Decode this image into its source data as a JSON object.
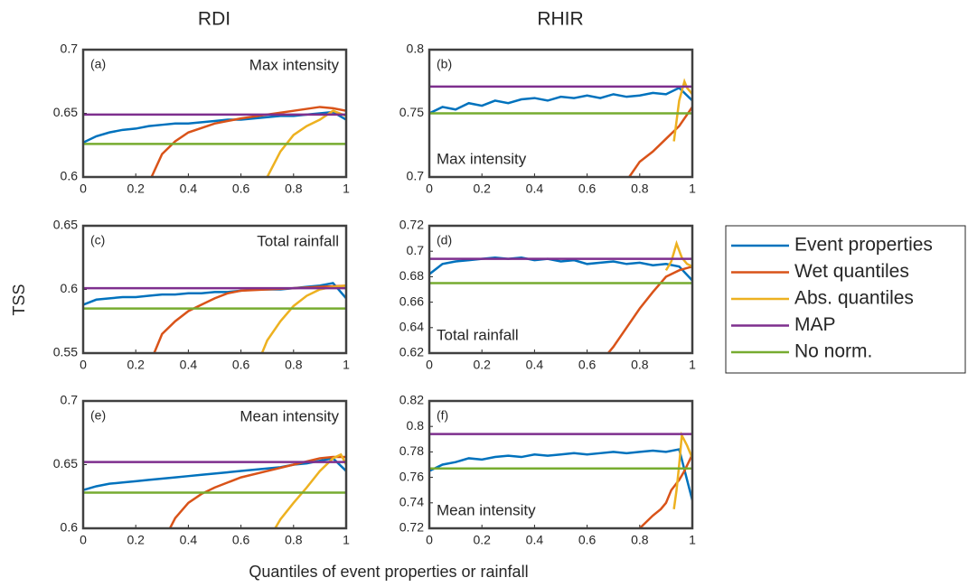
{
  "figure": {
    "column_titles": [
      "RDI",
      "RHIR"
    ],
    "ylabel": "TSS",
    "xlabel": "Quantiles of event properties or rainfall",
    "legend_position": "right",
    "series": [
      {
        "name": "Event properties",
        "color": "#0072bd"
      },
      {
        "name": "Wet quantiles",
        "color": "#d95319"
      },
      {
        "name": "Abs. quantiles",
        "color": "#edb120"
      },
      {
        "name": "MAP",
        "color": "#7e2f8e"
      },
      {
        "name": "No norm.",
        "color": "#77ac30"
      }
    ]
  },
  "chart_data": [
    {
      "type": "line",
      "label": "(a)",
      "annotation": "Max intensity",
      "annotation_corner": "upper right",
      "xlim": [
        0,
        1
      ],
      "xticks": [
        0,
        0.2,
        0.4,
        0.6,
        0.8,
        1
      ],
      "ylim": [
        0.6,
        0.7
      ],
      "yticks": [
        0.6,
        0.65,
        0.7
      ],
      "series": [
        {
          "x": [
            0,
            0.05,
            0.1,
            0.15,
            0.2,
            0.25,
            0.3,
            0.35,
            0.4,
            0.45,
            0.5,
            0.55,
            0.6,
            0.65,
            0.7,
            0.75,
            0.8,
            0.85,
            0.9,
            0.95,
            1
          ],
          "values": [
            0.627,
            0.632,
            0.635,
            0.637,
            0.638,
            0.64,
            0.641,
            0.642,
            0.642,
            0.643,
            0.644,
            0.645,
            0.645,
            0.646,
            0.647,
            0.648,
            0.648,
            0.649,
            0.65,
            0.651,
            0.645
          ]
        },
        {
          "x": [
            0.26,
            0.3,
            0.35,
            0.4,
            0.5,
            0.6,
            0.7,
            0.8,
            0.9,
            0.95,
            1
          ],
          "values": [
            0.6,
            0.618,
            0.628,
            0.635,
            0.642,
            0.646,
            0.649,
            0.652,
            0.655,
            0.654,
            0.652
          ]
        },
        {
          "x": [
            0.7,
            0.75,
            0.8,
            0.85,
            0.9,
            0.95,
            1
          ],
          "values": [
            0.6,
            0.62,
            0.633,
            0.64,
            0.645,
            0.652,
            0.648
          ]
        },
        {
          "x": [
            0,
            1
          ],
          "values": [
            0.649,
            0.649
          ]
        },
        {
          "x": [
            0,
            1
          ],
          "values": [
            0.626,
            0.626
          ]
        }
      ]
    },
    {
      "type": "line",
      "label": "(b)",
      "annotation": "Max intensity",
      "annotation_corner": "lower left",
      "xlim": [
        0,
        1
      ],
      "xticks": [
        0,
        0.2,
        0.4,
        0.6,
        0.8,
        1
      ],
      "ylim": [
        0.7,
        0.8
      ],
      "yticks": [
        0.7,
        0.75,
        0.8
      ],
      "series": [
        {
          "x": [
            0,
            0.05,
            0.1,
            0.15,
            0.2,
            0.25,
            0.3,
            0.35,
            0.4,
            0.45,
            0.5,
            0.55,
            0.6,
            0.65,
            0.7,
            0.75,
            0.8,
            0.85,
            0.9,
            0.95,
            1
          ],
          "values": [
            0.75,
            0.755,
            0.753,
            0.758,
            0.756,
            0.76,
            0.758,
            0.761,
            0.762,
            0.76,
            0.763,
            0.762,
            0.764,
            0.762,
            0.765,
            0.763,
            0.764,
            0.766,
            0.765,
            0.77,
            0.76
          ]
        },
        {
          "x": [
            0.76,
            0.8,
            0.85,
            0.9,
            0.95,
            1
          ],
          "values": [
            0.7,
            0.712,
            0.72,
            0.73,
            0.74,
            0.755
          ]
        },
        {
          "x": [
            0.93,
            0.95,
            0.97,
            0.98,
            1
          ],
          "values": [
            0.728,
            0.76,
            0.775,
            0.77,
            0.765
          ]
        },
        {
          "x": [
            0,
            1
          ],
          "values": [
            0.771,
            0.771
          ]
        },
        {
          "x": [
            0,
            1
          ],
          "values": [
            0.75,
            0.75
          ]
        }
      ]
    },
    {
      "type": "line",
      "label": "(c)",
      "annotation": "Total rainfall",
      "annotation_corner": "upper right",
      "xlim": [
        0,
        1
      ],
      "xticks": [
        0,
        0.2,
        0.4,
        0.6,
        0.8,
        1
      ],
      "ylim": [
        0.55,
        0.65
      ],
      "yticks": [
        0.55,
        0.6,
        0.65
      ],
      "series": [
        {
          "x": [
            0,
            0.05,
            0.1,
            0.15,
            0.2,
            0.25,
            0.3,
            0.35,
            0.4,
            0.45,
            0.5,
            0.55,
            0.6,
            0.65,
            0.7,
            0.75,
            0.8,
            0.85,
            0.9,
            0.95,
            1
          ],
          "values": [
            0.588,
            0.592,
            0.593,
            0.594,
            0.594,
            0.595,
            0.596,
            0.596,
            0.597,
            0.597,
            0.598,
            0.598,
            0.599,
            0.6,
            0.6,
            0.6,
            0.601,
            0.602,
            0.603,
            0.605,
            0.593
          ]
        },
        {
          "x": [
            0.27,
            0.3,
            0.35,
            0.4,
            0.45,
            0.5,
            0.55,
            0.6,
            0.7,
            0.8,
            0.9,
            1
          ],
          "values": [
            0.55,
            0.565,
            0.575,
            0.583,
            0.588,
            0.593,
            0.597,
            0.599,
            0.6,
            0.601,
            0.602,
            0.603
          ]
        },
        {
          "x": [
            0.68,
            0.7,
            0.75,
            0.8,
            0.85,
            0.9,
            0.95,
            1
          ],
          "values": [
            0.55,
            0.56,
            0.575,
            0.587,
            0.595,
            0.6,
            0.602,
            0.603
          ]
        },
        {
          "x": [
            0,
            1
          ],
          "values": [
            0.601,
            0.601
          ]
        },
        {
          "x": [
            0,
            1
          ],
          "values": [
            0.585,
            0.585
          ]
        }
      ]
    },
    {
      "type": "line",
      "label": "(d)",
      "annotation": "Total rainfall",
      "annotation_corner": "lower left",
      "xlim": [
        0,
        1
      ],
      "xticks": [
        0,
        0.2,
        0.4,
        0.6,
        0.8,
        1
      ],
      "ylim": [
        0.62,
        0.72
      ],
      "yticks": [
        0.62,
        0.64,
        0.66,
        0.68,
        0.7,
        0.72
      ],
      "series": [
        {
          "x": [
            0,
            0.05,
            0.1,
            0.15,
            0.2,
            0.25,
            0.3,
            0.35,
            0.4,
            0.45,
            0.5,
            0.55,
            0.6,
            0.65,
            0.7,
            0.75,
            0.8,
            0.85,
            0.9,
            0.95,
            1
          ],
          "values": [
            0.682,
            0.69,
            0.692,
            0.693,
            0.694,
            0.695,
            0.694,
            0.695,
            0.693,
            0.694,
            0.692,
            0.693,
            0.69,
            0.691,
            0.692,
            0.69,
            0.691,
            0.689,
            0.69,
            0.688,
            0.677
          ]
        },
        {
          "x": [
            0.68,
            0.7,
            0.75,
            0.8,
            0.85,
            0.9,
            0.95,
            1
          ],
          "values": [
            0.62,
            0.625,
            0.64,
            0.655,
            0.668,
            0.68,
            0.685,
            0.688
          ]
        },
        {
          "x": [
            0.9,
            0.92,
            0.94,
            0.96,
            0.98,
            1
          ],
          "values": [
            0.685,
            0.692,
            0.706,
            0.695,
            0.69,
            0.688
          ]
        },
        {
          "x": [
            0,
            1
          ],
          "values": [
            0.694,
            0.694
          ]
        },
        {
          "x": [
            0,
            1
          ],
          "values": [
            0.675,
            0.675
          ]
        }
      ]
    },
    {
      "type": "line",
      "label": "(e)",
      "annotation": "Mean intensity",
      "annotation_corner": "upper right",
      "xlim": [
        0,
        1
      ],
      "xticks": [
        0,
        0.2,
        0.4,
        0.6,
        0.8,
        1
      ],
      "ylim": [
        0.6,
        0.7
      ],
      "yticks": [
        0.6,
        0.65,
        0.7
      ],
      "series": [
        {
          "x": [
            0,
            0.05,
            0.1,
            0.15,
            0.2,
            0.25,
            0.3,
            0.35,
            0.4,
            0.45,
            0.5,
            0.55,
            0.6,
            0.65,
            0.7,
            0.75,
            0.8,
            0.85,
            0.9,
            0.95,
            1
          ],
          "values": [
            0.63,
            0.633,
            0.635,
            0.636,
            0.637,
            0.638,
            0.639,
            0.64,
            0.641,
            0.642,
            0.643,
            0.644,
            0.645,
            0.646,
            0.647,
            0.648,
            0.65,
            0.651,
            0.653,
            0.655,
            0.645
          ]
        },
        {
          "x": [
            0.33,
            0.35,
            0.4,
            0.45,
            0.5,
            0.6,
            0.7,
            0.8,
            0.9,
            0.95,
            1
          ],
          "values": [
            0.6,
            0.608,
            0.62,
            0.627,
            0.632,
            0.64,
            0.645,
            0.65,
            0.655,
            0.656,
            0.656
          ]
        },
        {
          "x": [
            0.73,
            0.75,
            0.8,
            0.85,
            0.9,
            0.95,
            0.98,
            1
          ],
          "values": [
            0.6,
            0.607,
            0.62,
            0.632,
            0.645,
            0.655,
            0.658,
            0.65
          ]
        },
        {
          "x": [
            0,
            1
          ],
          "values": [
            0.652,
            0.652
          ]
        },
        {
          "x": [
            0,
            1
          ],
          "values": [
            0.628,
            0.628
          ]
        }
      ]
    },
    {
      "type": "line",
      "label": "(f)",
      "annotation": "Mean intensity",
      "annotation_corner": "lower left",
      "xlim": [
        0,
        1
      ],
      "xticks": [
        0,
        0.2,
        0.4,
        0.6,
        0.8,
        1
      ],
      "ylim": [
        0.72,
        0.82
      ],
      "yticks": [
        0.72,
        0.74,
        0.76,
        0.78,
        0.8,
        0.82
      ],
      "series": [
        {
          "x": [
            0,
            0.05,
            0.1,
            0.15,
            0.2,
            0.25,
            0.3,
            0.35,
            0.4,
            0.45,
            0.5,
            0.55,
            0.6,
            0.65,
            0.7,
            0.75,
            0.8,
            0.85,
            0.9,
            0.95,
            1
          ],
          "values": [
            0.765,
            0.77,
            0.772,
            0.775,
            0.774,
            0.776,
            0.777,
            0.776,
            0.778,
            0.777,
            0.778,
            0.779,
            0.778,
            0.779,
            0.78,
            0.779,
            0.78,
            0.781,
            0.78,
            0.782,
            0.742
          ]
        },
        {
          "x": [
            0.8,
            0.85,
            0.88,
            0.9,
            0.92,
            0.95,
            0.97,
            1
          ],
          "values": [
            0.72,
            0.73,
            0.735,
            0.74,
            0.75,
            0.758,
            0.765,
            0.778
          ]
        },
        {
          "x": [
            0.93,
            0.94,
            0.95,
            0.96,
            0.98,
            1
          ],
          "values": [
            0.735,
            0.75,
            0.77,
            0.793,
            0.785,
            0.775
          ]
        },
        {
          "x": [
            0,
            1
          ],
          "values": [
            0.794,
            0.794
          ]
        },
        {
          "x": [
            0,
            1
          ],
          "values": [
            0.767,
            0.767
          ]
        }
      ]
    }
  ]
}
